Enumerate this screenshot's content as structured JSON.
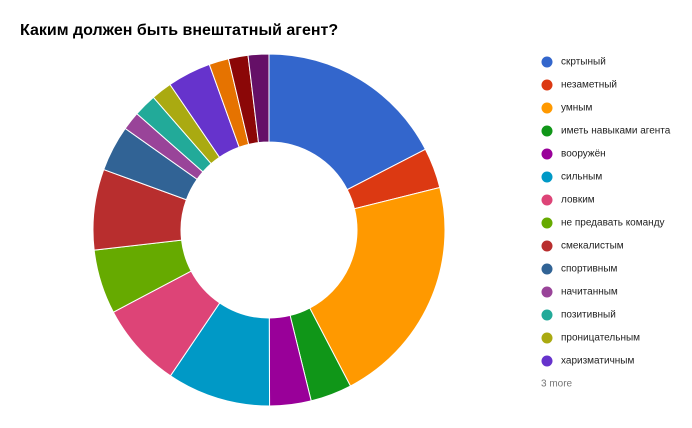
{
  "chart_data": {
    "type": "donut",
    "title": "Каким должен быть внештатный агент?",
    "categories": [
      "скртыный",
      "незаметный",
      "умным",
      "иметь навыками агента",
      "вооружён",
      "сильным",
      "ловким",
      "не предавать команду",
      "смекалистым",
      "спортивным",
      "начитанным",
      "позитивный",
      "проницательным",
      "харизматичным",
      null,
      null,
      null
    ],
    "values": [
      17.4,
      3.7,
      21.2,
      3.8,
      3.8,
      9.5,
      7.8,
      5.9,
      7.4,
      4.2,
      1.7,
      2.1,
      1.9,
      4.0,
      1.8,
      1.8,
      1.9
    ],
    "colors": [
      "#3366cc",
      "#dc3912",
      "#ff9900",
      "#109618",
      "#990099",
      "#0099c6",
      "#dd4477",
      "#66aa00",
      "#b82e2e",
      "#316395",
      "#994499",
      "#22aa99",
      "#aaaa11",
      "#6633cc",
      "#e67300",
      "#8b0707",
      "#651067"
    ],
    "legend_more": "3 more"
  }
}
